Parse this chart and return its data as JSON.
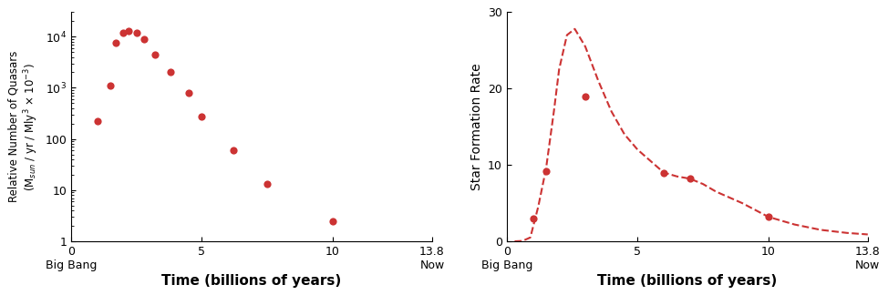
{
  "quasar_x": [
    1.0,
    1.5,
    1.7,
    2.0,
    2.2,
    2.5,
    2.8,
    3.2,
    3.8,
    4.5,
    5.0,
    6.2,
    7.5,
    10.0
  ],
  "quasar_y": [
    220,
    1100,
    7500,
    12000,
    13000,
    12000,
    9000,
    4500,
    2000,
    800,
    270,
    60,
    13,
    2.5
  ],
  "sfr_x": [
    1.0,
    1.5,
    3.0,
    6.0,
    7.0,
    10.0
  ],
  "sfr_y": [
    3.0,
    9.2,
    19.0,
    9.0,
    8.2,
    3.2
  ],
  "sfr_curve_x": [
    0.3,
    0.6,
    0.9,
    1.2,
    1.5,
    1.8,
    2.0,
    2.3,
    2.6,
    3.0,
    3.5,
    4.0,
    4.5,
    5.0,
    5.5,
    6.0,
    6.5,
    7.0,
    7.5,
    8.0,
    9.0,
    10.0,
    11.0,
    12.0,
    13.0,
    13.8
  ],
  "sfr_curve_y": [
    0.0,
    0.05,
    0.5,
    4.5,
    9.5,
    17.0,
    22.5,
    27.0,
    27.8,
    25.5,
    21.0,
    17.0,
    14.0,
    12.0,
    10.5,
    9.0,
    8.5,
    8.2,
    7.5,
    6.5,
    5.0,
    3.2,
    2.2,
    1.5,
    1.1,
    0.9
  ],
  "dot_color": "#CC3333",
  "curve_color": "#CC3333",
  "ylabel_left_line1": "Relative Number of Quasars",
  "ylabel_left_line2": "(M$_{sun}$ / yr / Mly$^3$ × 10$^{-3}$)",
  "ylabel_right": "Star Formation Rate",
  "xlabel": "Time (billions of years)",
  "xlim": [
    0,
    13.8
  ],
  "ylim_log_min": 1,
  "ylim_log_max": 30000,
  "ylim_sfr": [
    0,
    30
  ],
  "yticks_log": [
    1,
    10,
    100,
    1000,
    10000
  ],
  "ytick_log_labels": [
    "1",
    "10",
    "100",
    "10$^3$",
    "10$^4$"
  ],
  "yticks_sfr": [
    0,
    10,
    20,
    30
  ],
  "xticks": [
    0,
    5,
    10,
    13.8
  ]
}
